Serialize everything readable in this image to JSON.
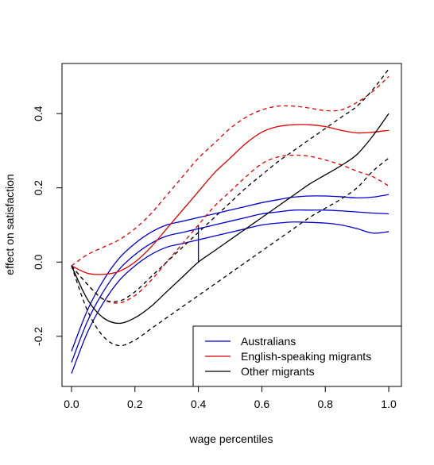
{
  "chart_data": {
    "type": "line",
    "title": "",
    "xlabel": "wage percentiles",
    "ylabel": "effect on satisfaction",
    "xlim": [
      -0.03,
      1.04
    ],
    "ylim": [
      -0.335,
      0.535
    ],
    "xticks": [
      0.0,
      0.2,
      0.4,
      0.6,
      0.8,
      1.0
    ],
    "xtick_labels": [
      "0.0",
      "0.2",
      "0.4",
      "0.6",
      "0.8",
      "1.0"
    ],
    "yticks": [
      -0.2,
      0.0,
      0.2,
      0.4
    ],
    "ytick_labels": [
      "-0.2",
      "0.0",
      "0.2",
      "0.4"
    ],
    "grid": false,
    "legend_position": "bottom-right",
    "legend": [
      {
        "label": "Australians",
        "color": "#0000cc"
      },
      {
        "label": "English-speaking migrants",
        "color": "#dd0000"
      },
      {
        "label": "Other migrants",
        "color": "#000000"
      }
    ],
    "series": [
      {
        "group": "Australians",
        "role": "estimate",
        "color": "#0000cc",
        "style": "solid",
        "x": [
          0.0,
          0.05,
          0.1,
          0.15,
          0.2,
          0.25,
          0.3,
          0.35,
          0.4,
          0.45,
          0.5,
          0.55,
          0.6,
          0.65,
          0.7,
          0.75,
          0.8,
          0.85,
          0.9,
          0.95,
          1.0
        ],
        "y": [
          -0.27,
          -0.16,
          -0.08,
          -0.02,
          0.02,
          0.05,
          0.07,
          0.08,
          0.09,
          0.1,
          0.11,
          0.12,
          0.13,
          0.135,
          0.14,
          0.14,
          0.14,
          0.138,
          0.135,
          0.132,
          0.13
        ]
      },
      {
        "group": "Australians",
        "role": "upper",
        "color": "#0000cc",
        "style": "solid",
        "x": [
          0.0,
          0.05,
          0.1,
          0.15,
          0.2,
          0.25,
          0.3,
          0.35,
          0.4,
          0.45,
          0.5,
          0.55,
          0.6,
          0.65,
          0.7,
          0.75,
          0.8,
          0.85,
          0.9,
          0.95,
          1.0
        ],
        "y": [
          -0.24,
          -0.13,
          -0.05,
          0.01,
          0.05,
          0.08,
          0.1,
          0.11,
          0.12,
          0.13,
          0.14,
          0.15,
          0.16,
          0.168,
          0.175,
          0.178,
          0.178,
          0.176,
          0.173,
          0.175,
          0.182
        ]
      },
      {
        "group": "Australians",
        "role": "lower",
        "color": "#0000cc",
        "style": "solid",
        "x": [
          0.0,
          0.05,
          0.1,
          0.15,
          0.2,
          0.25,
          0.3,
          0.35,
          0.4,
          0.45,
          0.5,
          0.55,
          0.6,
          0.65,
          0.7,
          0.75,
          0.8,
          0.85,
          0.9,
          0.95,
          1.0
        ],
        "y": [
          -0.3,
          -0.19,
          -0.11,
          -0.05,
          -0.01,
          0.02,
          0.04,
          0.05,
          0.06,
          0.07,
          0.08,
          0.09,
          0.1,
          0.105,
          0.108,
          0.107,
          0.105,
          0.1,
          0.09,
          0.078,
          0.082
        ]
      },
      {
        "group": "Australians",
        "role": "extension",
        "color": "#0000cc",
        "style": "solid",
        "x": [
          0.4,
          0.4
        ],
        "y": [
          0.0,
          0.1
        ]
      },
      {
        "group": "English-speaking migrants",
        "role": "estimate",
        "color": "#dd0000",
        "style": "solid",
        "x": [
          0.0,
          0.05,
          0.1,
          0.15,
          0.2,
          0.25,
          0.3,
          0.35,
          0.4,
          0.45,
          0.5,
          0.55,
          0.6,
          0.65,
          0.7,
          0.75,
          0.8,
          0.85,
          0.9,
          0.95,
          1.0
        ],
        "y": [
          -0.01,
          -0.03,
          -0.033,
          -0.025,
          0.0,
          0.04,
          0.09,
          0.14,
          0.19,
          0.24,
          0.28,
          0.32,
          0.35,
          0.365,
          0.37,
          0.37,
          0.365,
          0.355,
          0.348,
          0.35,
          0.355
        ]
      },
      {
        "group": "English-speaking migrants",
        "role": "upper",
        "color": "#dd0000",
        "style": "dashed",
        "x": [
          0.0,
          0.05,
          0.1,
          0.15,
          0.2,
          0.25,
          0.3,
          0.35,
          0.4,
          0.45,
          0.5,
          0.55,
          0.6,
          0.65,
          0.7,
          0.75,
          0.8,
          0.85,
          0.9,
          0.95,
          1.0
        ],
        "y": [
          -0.01,
          0.02,
          0.04,
          0.06,
          0.09,
          0.13,
          0.18,
          0.23,
          0.28,
          0.32,
          0.36,
          0.39,
          0.41,
          0.42,
          0.42,
          0.415,
          0.408,
          0.41,
          0.43,
          0.46,
          0.5
        ]
      },
      {
        "group": "English-speaking migrants",
        "role": "lower",
        "color": "#dd0000",
        "style": "dashed",
        "x": [
          0.0,
          0.05,
          0.1,
          0.15,
          0.2,
          0.25,
          0.3,
          0.35,
          0.4,
          0.45,
          0.5,
          0.55,
          0.6,
          0.65,
          0.7,
          0.75,
          0.8,
          0.85,
          0.9,
          0.95,
          1.0
        ],
        "y": [
          -0.01,
          -0.06,
          -0.1,
          -0.11,
          -0.09,
          -0.05,
          0.0,
          0.05,
          0.1,
          0.15,
          0.19,
          0.23,
          0.265,
          0.283,
          0.288,
          0.285,
          0.275,
          0.262,
          0.245,
          0.23,
          0.205
        ]
      },
      {
        "group": "Other migrants",
        "role": "estimate",
        "color": "#000000",
        "style": "solid",
        "x": [
          0.0,
          0.05,
          0.1,
          0.15,
          0.2,
          0.25,
          0.3,
          0.35,
          0.4,
          0.45,
          0.5,
          0.55,
          0.6,
          0.65,
          0.7,
          0.75,
          0.8,
          0.85,
          0.9,
          0.95,
          1.0
        ],
        "y": [
          -0.01,
          -0.1,
          -0.15,
          -0.165,
          -0.15,
          -0.12,
          -0.08,
          -0.04,
          0.0,
          0.03,
          0.06,
          0.09,
          0.12,
          0.15,
          0.18,
          0.21,
          0.235,
          0.26,
          0.29,
          0.34,
          0.4
        ]
      },
      {
        "group": "Other migrants",
        "role": "upper",
        "color": "#000000",
        "style": "dashed",
        "x": [
          0.0,
          0.05,
          0.1,
          0.15,
          0.2,
          0.25,
          0.3,
          0.35,
          0.4,
          0.45,
          0.5,
          0.55,
          0.6,
          0.65,
          0.7,
          0.75,
          0.8,
          0.85,
          0.9,
          0.95,
          1.0
        ],
        "y": [
          -0.01,
          -0.06,
          -0.1,
          -0.105,
          -0.08,
          -0.04,
          0.0,
          0.04,
          0.08,
          0.12,
          0.16,
          0.2,
          0.235,
          0.27,
          0.3,
          0.33,
          0.36,
          0.39,
          0.42,
          0.465,
          0.52
        ]
      },
      {
        "group": "Other migrants",
        "role": "lower",
        "color": "#000000",
        "style": "dashed",
        "x": [
          0.0,
          0.05,
          0.1,
          0.15,
          0.2,
          0.25,
          0.3,
          0.35,
          0.4,
          0.45,
          0.5,
          0.55,
          0.6,
          0.65,
          0.7,
          0.75,
          0.8,
          0.85,
          0.9,
          0.95,
          1.0
        ],
        "y": [
          -0.01,
          -0.13,
          -0.2,
          -0.225,
          -0.21,
          -0.18,
          -0.15,
          -0.12,
          -0.09,
          -0.06,
          -0.03,
          0.0,
          0.03,
          0.06,
          0.09,
          0.12,
          0.145,
          0.17,
          0.2,
          0.245,
          0.28
        ]
      }
    ]
  }
}
